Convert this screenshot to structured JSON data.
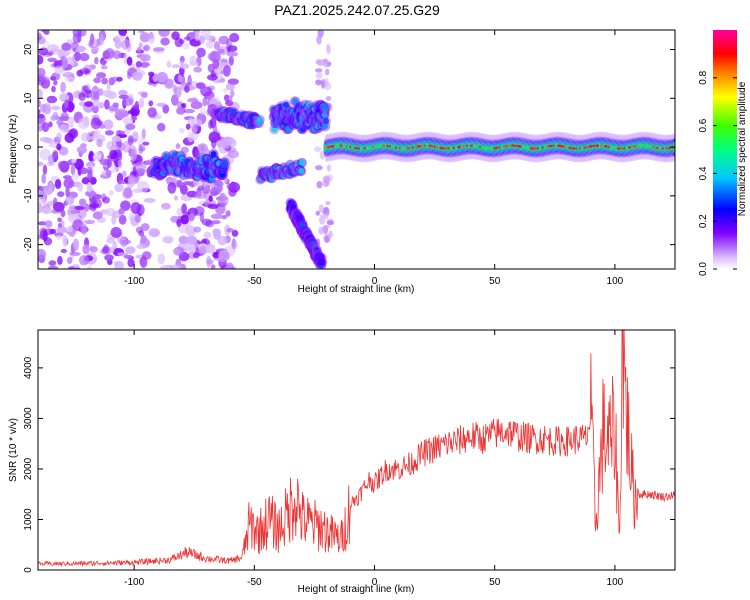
{
  "title": "PAZ1.2025.242.07.25.G29",
  "chart_data": [
    {
      "type": "heatmap",
      "name": "spectrogram",
      "xlabel": "Height of straight line (km)",
      "ylabel": "Frequency (Hz)",
      "xlim": [
        -140,
        125
      ],
      "ylim": [
        -25,
        24
      ],
      "xticks": [
        -100,
        -50,
        0,
        50,
        100
      ],
      "xtick_labels": [
        "-100",
        "-50",
        "0",
        "50",
        "100"
      ],
      "yticks": [
        -20,
        -10,
        0,
        10,
        20
      ],
      "ytick_labels": [
        "-20",
        "-10",
        "0",
        "10",
        "20"
      ],
      "colorbar": {
        "label": "Normalized spectral amplitude",
        "range": [
          0,
          1
        ],
        "ticks": [
          0.0,
          0.2,
          0.4,
          0.6,
          0.8
        ],
        "tick_labels": [
          "0.0",
          "0.2",
          "0.4",
          "0.6",
          "0.8"
        ],
        "colormap": [
          "#ffffff",
          "#d8b8ff",
          "#8000ff",
          "#0000ff",
          "#00c8ff",
          "#00ff80",
          "#40ff00",
          "#ffff00",
          "#ff8000",
          "#ff0000",
          "#ff00a0"
        ]
      },
      "features": [
        {
          "label": "noise",
          "x_range": [
            -140,
            -58
          ],
          "freq_range": [
            -25,
            24
          ],
          "amplitude": 0.12
        },
        {
          "label": "segment",
          "x_range": [
            -92,
            -62
          ],
          "freq_range": [
            -7,
            -1
          ],
          "amplitude": 0.4
        },
        {
          "label": "segment",
          "x_range": [
            -65,
            -30
          ],
          "freq_range": [
            -6,
            7
          ],
          "amplitude": 0.45
        },
        {
          "label": "segment",
          "x_range": [
            -42,
            -20
          ],
          "freq_range": [
            2,
            10
          ],
          "amplitude": 0.4
        },
        {
          "label": "segment",
          "x_range": [
            -35,
            -22
          ],
          "freq_range": [
            -24,
            -12
          ],
          "amplitude": 0.3
        },
        {
          "label": "carrier",
          "x_range": [
            -20,
            125
          ],
          "freq": 0,
          "amplitude": 0.95
        }
      ]
    },
    {
      "type": "line",
      "name": "snr",
      "xlabel": "Height of straight line (km)",
      "ylabel": "SNR (10 * v/v)",
      "xlim": [
        -140,
        125
      ],
      "ylim": [
        0,
        4750
      ],
      "xticks": [
        -100,
        -50,
        0,
        50,
        100
      ],
      "xtick_labels": [
        "-100",
        "-50",
        "0",
        "50",
        "100"
      ],
      "yticks": [
        0,
        1000,
        2000,
        3000,
        4000
      ],
      "ytick_labels": [
        "0",
        "1000",
        "2000",
        "3000",
        "4000"
      ],
      "color": "#ee3333",
      "series": [
        {
          "name": "SNR",
          "x": [
            -140,
            -120,
            -100,
            -85,
            -78,
            -70,
            -60,
            -55,
            -52,
            -48,
            -44,
            -40,
            -36,
            -33,
            -30,
            -26,
            -22,
            -18,
            -14,
            -12,
            -10,
            -6,
            -2,
            0,
            5,
            10,
            15,
            20,
            25,
            30,
            35,
            40,
            45,
            50,
            55,
            60,
            65,
            70,
            75,
            80,
            85,
            88,
            90,
            92,
            95,
            98,
            100,
            102,
            103,
            105,
            108,
            110,
            115,
            120,
            125
          ],
          "y": [
            120,
            130,
            150,
            200,
            350,
            230,
            180,
            250,
            900,
            750,
            1000,
            800,
            1100,
            1500,
            1000,
            900,
            850,
            700,
            600,
            900,
            1300,
            1500,
            1800,
            1700,
            2000,
            2000,
            2100,
            2300,
            2400,
            2500,
            2550,
            2650,
            2600,
            2700,
            2750,
            2650,
            2600,
            2600,
            2550,
            2550,
            2600,
            2600,
            3000,
            900,
            2700,
            2500,
            2800,
            600,
            4700,
            3000,
            1400,
            1500,
            1500,
            1450,
            1480
          ]
        }
      ]
    }
  ]
}
